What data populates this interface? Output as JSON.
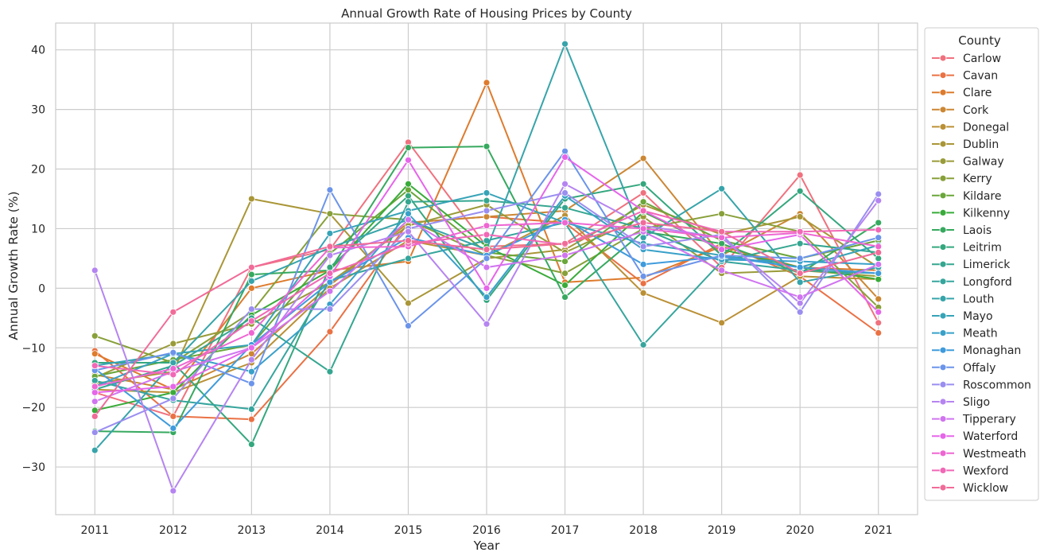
{
  "chart_data": {
    "type": "line",
    "title": "Annual Growth Rate of Housing Prices by County",
    "xlabel": "Year",
    "ylabel": "Annual Growth Rate (%)",
    "x": [
      2011,
      2012,
      2013,
      2014,
      2015,
      2016,
      2017,
      2018,
      2019,
      2020,
      2021
    ],
    "y_ticks": [
      -30,
      -20,
      -10,
      0,
      10,
      20,
      30,
      40
    ],
    "ylim": [
      -38,
      44.5
    ],
    "grid": true,
    "legend_title": "County",
    "legend_position": "outside-right",
    "series": [
      {
        "name": "Carlow",
        "color": "#f0717e",
        "values": [
          -17.5,
          -21.5,
          3.5,
          6.5,
          24.5,
          7.0,
          7.5,
          16.0,
          3.5,
          19.0,
          -5.8
        ]
      },
      {
        "name": "Cavan",
        "color": "#ea7144",
        "values": [
          -10.5,
          -21.5,
          -22.0,
          -7.3,
          11.0,
          12.0,
          11.0,
          0.8,
          7.5,
          2.0,
          -7.5
        ]
      },
      {
        "name": "Clare",
        "color": "#de7b2d",
        "values": [
          -11.0,
          -17.0,
          0.0,
          3.0,
          4.5,
          34.5,
          1.0,
          1.8,
          7.0,
          3.5,
          3.0
        ]
      },
      {
        "name": "Cork",
        "color": "#cc8734",
        "values": [
          -14.5,
          -17.0,
          -11.0,
          0.5,
          11.0,
          12.0,
          13.0,
          21.8,
          5.5,
          12.5,
          -1.8
        ]
      },
      {
        "name": "Donegal",
        "color": "#ba9036",
        "values": [
          -17.0,
          -17.5,
          -12.5,
          0.0,
          8.0,
          5.5,
          12.2,
          -0.8,
          -5.8,
          2.0,
          1.5
        ]
      },
      {
        "name": "Dublin",
        "color": "#a99637",
        "values": [
          -16.0,
          -14.0,
          15.0,
          12.5,
          -2.5,
          5.0,
          6.5,
          14.0,
          9.0,
          12.0,
          3.5
        ]
      },
      {
        "name": "Galway",
        "color": "#999b39",
        "values": [
          -15.0,
          -9.3,
          -6.0,
          1.0,
          10.5,
          14.0,
          6.0,
          12.0,
          2.5,
          3.0,
          2.0
        ]
      },
      {
        "name": "Kerry",
        "color": "#88a03a",
        "values": [
          -8.0,
          -12.5,
          -4.0,
          12.5,
          11.5,
          5.5,
          2.5,
          10.0,
          12.5,
          9.5,
          -3.2
        ]
      },
      {
        "name": "Kildare",
        "color": "#6aa63a",
        "values": [
          -14.8,
          -12.0,
          -9.5,
          5.8,
          16.5,
          6.0,
          4.5,
          14.5,
          8.0,
          5.0,
          8.0
        ]
      },
      {
        "name": "Kilkenny",
        "color": "#39ab3a",
        "values": [
          -20.5,
          -17.5,
          -4.5,
          3.0,
          17.5,
          7.0,
          0.5,
          12.8,
          6.5,
          3.5,
          1.5
        ]
      },
      {
        "name": "Laois",
        "color": "#36a95f",
        "values": [
          -24.0,
          -24.2,
          2.3,
          3.0,
          23.6,
          23.8,
          -1.5,
          9.5,
          7.5,
          2.5,
          11.0
        ]
      },
      {
        "name": "Leitrim",
        "color": "#34a77e",
        "values": [
          -12.5,
          -12.5,
          -26.2,
          3.5,
          15.5,
          -2.0,
          15.0,
          17.5,
          5.5,
          16.3,
          5.0
        ]
      },
      {
        "name": "Limerick",
        "color": "#35a690",
        "values": [
          -17.0,
          -13.0,
          -5.0,
          -14.0,
          14.5,
          14.7,
          13.5,
          10.0,
          4.5,
          7.5,
          6.0
        ]
      },
      {
        "name": "Longford",
        "color": "#36a59d",
        "values": [
          -15.5,
          -18.8,
          -20.3,
          1.3,
          5.0,
          8.0,
          11.0,
          -9.5,
          4.5,
          3.0,
          2.5
        ]
      },
      {
        "name": "Louth",
        "color": "#36a4aa",
        "values": [
          -27.2,
          -12.5,
          1.2,
          6.8,
          11.5,
          6.5,
          41.0,
          8.5,
          16.7,
          1.0,
          3.5
        ]
      },
      {
        "name": "Mayo",
        "color": "#37a3b7",
        "values": [
          -13.0,
          -11.0,
          -9.5,
          9.2,
          13.0,
          16.0,
          11.0,
          7.5,
          5.5,
          3.5,
          7.2
        ]
      },
      {
        "name": "Meath",
        "color": "#39a0c9",
        "values": [
          -16.5,
          -11.0,
          -14.0,
          -2.7,
          12.5,
          -1.5,
          15.5,
          6.5,
          4.8,
          4.5,
          4.0
        ]
      },
      {
        "name": "Monaghan",
        "color": "#3f9bdc",
        "values": [
          -13.5,
          -23.5,
          -9.5,
          1.0,
          8.5,
          5.5,
          11.5,
          4.0,
          5.3,
          3.5,
          2.5
        ]
      },
      {
        "name": "Offaly",
        "color": "#6b94ea",
        "values": [
          -13.8,
          -10.8,
          -16.0,
          16.5,
          -6.3,
          5.0,
          23.0,
          2.0,
          5.5,
          5.0,
          8.5
        ]
      },
      {
        "name": "Roscommon",
        "color": "#9a8ef0",
        "values": [
          -24.2,
          -18.5,
          -3.5,
          -3.5,
          10.0,
          13.0,
          16.0,
          7.0,
          9.0,
          -4.0,
          15.8
        ]
      },
      {
        "name": "Sligo",
        "color": "#b584f1",
        "values": [
          3.0,
          -34.0,
          -12.0,
          5.5,
          9.5,
          -6.0,
          17.5,
          10.5,
          8.5,
          -2.5,
          14.7
        ]
      },
      {
        "name": "Tipperary",
        "color": "#d074f0",
        "values": [
          -19.0,
          -14.0,
          -10.0,
          -0.5,
          11.5,
          3.5,
          5.5,
          9.5,
          3.0,
          -1.5,
          4.0
        ]
      },
      {
        "name": "Waterford",
        "color": "#e666ea",
        "values": [
          -17.5,
          -16.5,
          -10.0,
          2.0,
          21.5,
          0.0,
          22.0,
          13.0,
          6.5,
          9.0,
          -4.0
        ]
      },
      {
        "name": "Westmeath",
        "color": "#ee66d2",
        "values": [
          -16.5,
          -13.5,
          -7.5,
          6.8,
          7.0,
          10.5,
          11.0,
          10.0,
          8.5,
          9.3,
          7.0
        ]
      },
      {
        "name": "Wexford",
        "color": "#f168b6",
        "values": [
          -13.0,
          -14.5,
          -5.5,
          2.5,
          7.5,
          9.0,
          7.3,
          13.0,
          9.5,
          9.5,
          9.8
        ]
      },
      {
        "name": "Wicklow",
        "color": "#f16b98",
        "values": [
          -21.5,
          -4.0,
          3.5,
          7.0,
          8.0,
          6.5,
          7.5,
          11.0,
          9.5,
          2.5,
          6.0
        ]
      }
    ]
  }
}
